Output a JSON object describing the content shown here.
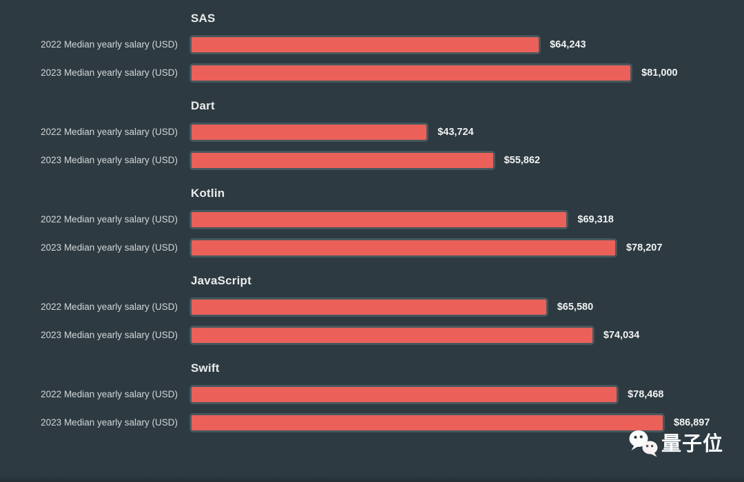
{
  "page": {
    "background": "#2d3a42"
  },
  "chart_data": {
    "type": "bar",
    "orientation": "horizontal",
    "title": "",
    "xlabel": "",
    "ylabel": "",
    "xlim": [
      0,
      86897
    ],
    "grid": false,
    "legend_position": "none",
    "bar_color": "#eb6159",
    "bar_border_color": "#47575d",
    "categories": [
      "2022 Median yearly salary (USD)",
      "2023 Median yearly salary (USD)"
    ],
    "groups": [
      {
        "title": "SAS",
        "bars": [
          {
            "label": "2022 Median yearly salary (USD)",
            "value": 64243,
            "value_label": "$64,243"
          },
          {
            "label": "2023 Median yearly salary (USD)",
            "value": 81000,
            "value_label": "$81,000"
          }
        ]
      },
      {
        "title": "Dart",
        "bars": [
          {
            "label": "2022 Median yearly salary (USD)",
            "value": 43724,
            "value_label": "$43,724"
          },
          {
            "label": "2023 Median yearly salary (USD)",
            "value": 55862,
            "value_label": "$55,862"
          }
        ]
      },
      {
        "title": "Kotlin",
        "bars": [
          {
            "label": "2022 Median yearly salary (USD)",
            "value": 69318,
            "value_label": "$69,318"
          },
          {
            "label": "2023 Median yearly salary (USD)",
            "value": 78207,
            "value_label": "$78,207"
          }
        ]
      },
      {
        "title": "JavaScript",
        "bars": [
          {
            "label": "2022 Median yearly salary (USD)",
            "value": 65580,
            "value_label": "$65,580"
          },
          {
            "label": "2023 Median yearly salary (USD)",
            "value": 74034,
            "value_label": "$74,034"
          }
        ]
      },
      {
        "title": "Swift",
        "bars": [
          {
            "label": "2022 Median yearly salary (USD)",
            "value": 78468,
            "value_label": "$78,468"
          },
          {
            "label": "2023 Median yearly salary (USD)",
            "value": 86897,
            "value_label": "$86,897"
          }
        ]
      }
    ]
  },
  "watermark": {
    "text": "量子位",
    "icon": "wechat-icon"
  }
}
